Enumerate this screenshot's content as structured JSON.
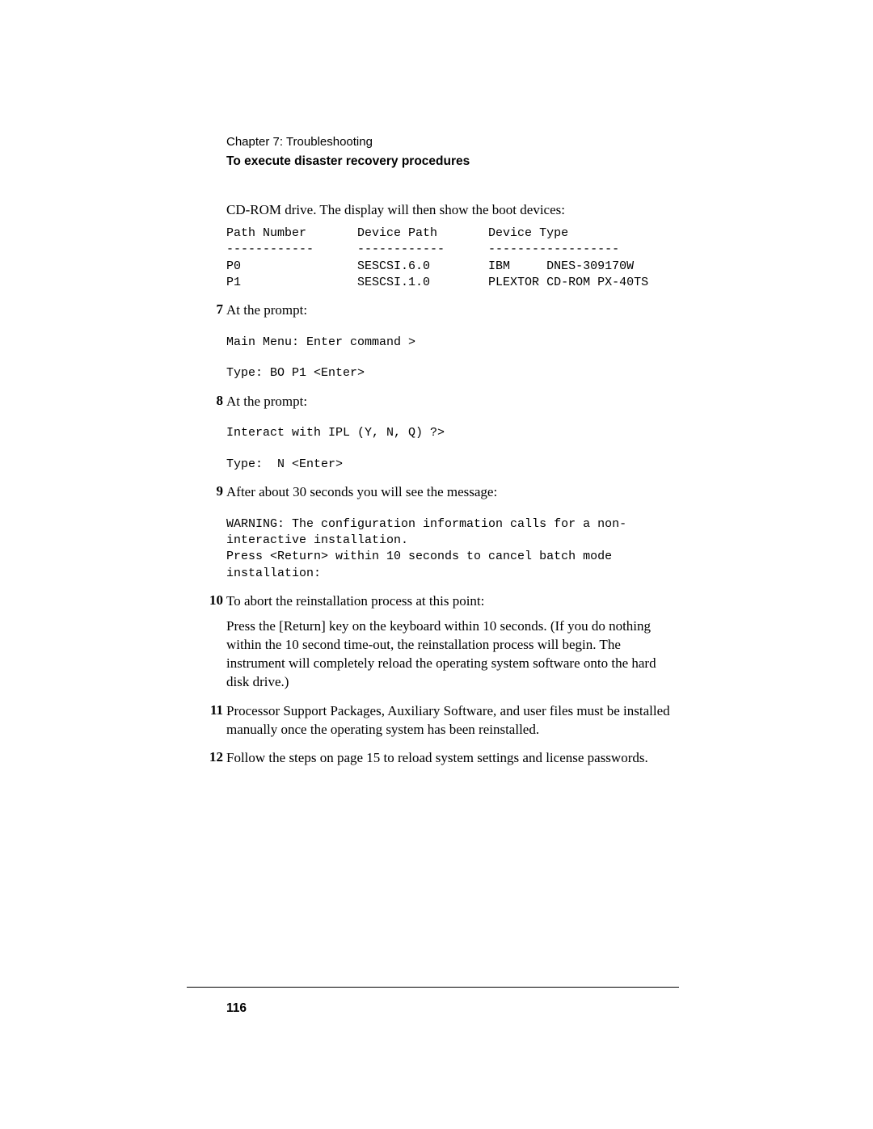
{
  "header": {
    "chapter": "Chapter 7: Troubleshooting",
    "section": "To execute disaster recovery procedures"
  },
  "intro_text": "CD-ROM drive. The display will then show the boot devices:",
  "boot_table": {
    "cols_header": "Path Number       Device Path       Device Type",
    "cols_divider": "------------      ------------      ------------------",
    "row0": "P0                SESCSI.6.0        IBM     DNES-309170W",
    "row1": "P1                SESCSI.1.0        PLEXTOR CD-ROM PX-40TS"
  },
  "steps": {
    "s7": {
      "num": "7",
      "text": "At the prompt:",
      "mono1": "Main Menu: Enter command >",
      "mono2": "Type: BO P1 <Enter>"
    },
    "s8": {
      "num": "8",
      "text": "At the prompt:",
      "mono1": "Interact with IPL (Y, N, Q) ?>",
      "mono2": "Type:  N <Enter>"
    },
    "s9": {
      "num": "9",
      "text": "After about 30 seconds you will see the message:",
      "mono1": "WARNING: The configuration information calls for a non-\ninteractive installation.\nPress <Return> within 10 seconds to cancel batch mode \ninstallation:"
    },
    "s10": {
      "num": "10",
      "text": "To abort the reinstallation process at this point:",
      "para": "Press the [Return] key on the keyboard within 10 seconds. (If you do nothing within the 10 second time-out, the reinstallation process will begin. The instrument will completely reload the operating system software onto the hard disk drive.)"
    },
    "s11": {
      "num": "11",
      "text": "Processor Support Packages, Auxiliary Software, and user files must be installed manually once the operating system has been reinstalled."
    },
    "s12": {
      "num": "12",
      "text": "Follow the steps on page 15 to reload system settings and license passwords."
    }
  },
  "page_number": "116"
}
